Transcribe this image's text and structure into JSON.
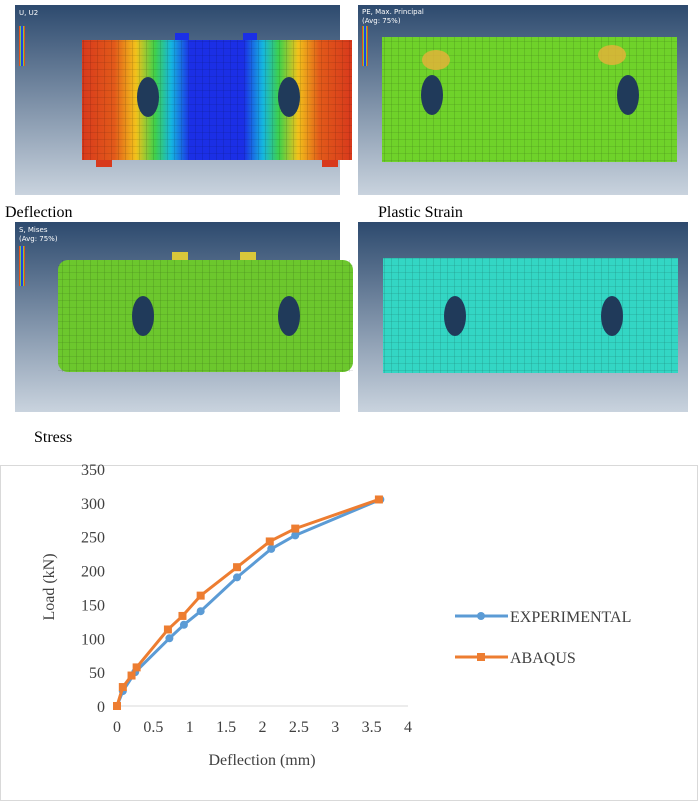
{
  "panels": [
    {
      "caption": "Deflection",
      "legend_title": "U, U2"
    },
    {
      "caption": "Plastic Strain",
      "legend_title": "PE, Max. Principal",
      "legend_subtitle": "(Avg: 75%)"
    },
    {
      "caption": "Stress",
      "legend_title": "S, Mises",
      "legend_subtitle": "(Avg: 75%)"
    }
  ],
  "chart_data": {
    "type": "line",
    "xlabel": "Deflection (mm)",
    "ylabel": "Load (kN)",
    "xlim": [
      0,
      4
    ],
    "xticks": [
      0,
      0.5,
      1,
      1.5,
      2,
      2.5,
      3,
      3.5,
      4
    ],
    "ylim": [
      0,
      350
    ],
    "yticks": [
      0,
      50,
      100,
      150,
      200,
      250,
      300,
      350
    ],
    "legend": "right",
    "series": [
      {
        "name": "EXPERIMENTAL",
        "color": "#5b9bd5",
        "marker": "circle",
        "x": [
          0,
          0.08,
          0.25,
          0.72,
          0.92,
          1.15,
          1.65,
          2.12,
          2.45,
          3.62
        ],
        "values": [
          0,
          22,
          50,
          100,
          120,
          140,
          190,
          232,
          252,
          305
        ]
      },
      {
        "name": "ABAQUS",
        "color": "#ed7d31",
        "marker": "square",
        "x": [
          0,
          0.08,
          0.2,
          0.27,
          0.7,
          0.9,
          1.15,
          1.65,
          2.1,
          2.45,
          3.6
        ],
        "values": [
          0,
          28,
          45,
          57,
          113,
          133,
          163,
          205,
          243,
          262,
          305
        ]
      }
    ]
  }
}
